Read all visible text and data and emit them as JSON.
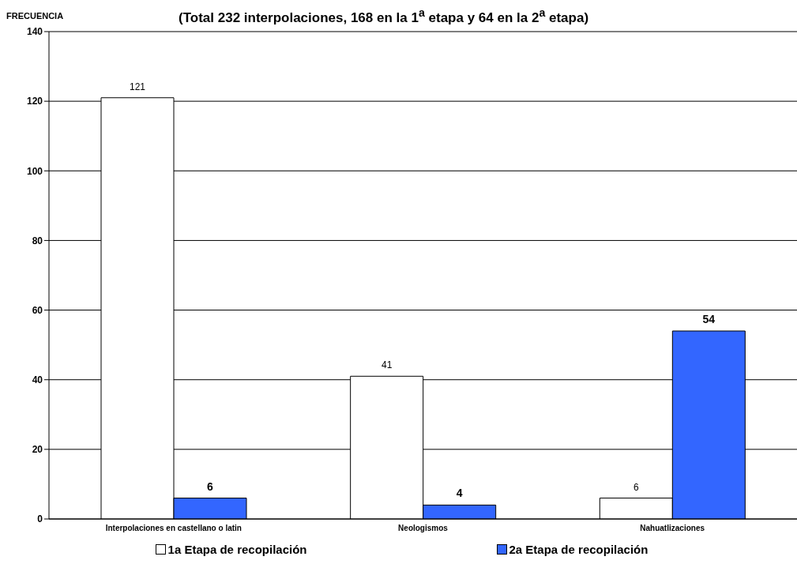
{
  "chart_data": {
    "type": "bar",
    "title": "(Total 232 interpolaciones, 168 en la 1$^{a}$ etapa y 64 en la 2$^{a}$ etapa)",
    "ylabel": "FRECUENCIA",
    "categories": [
      "Interpolaciones en castellano o latin",
      "Neologismos",
      "Nahuatlizaciones"
    ],
    "series": [
      {
        "name": "1a Etapa de recopilación",
        "color": "#ffffff",
        "values": [
          121,
          41,
          6
        ]
      },
      {
        "name": "2a Etapa de recopilación",
        "color": "#3366ff",
        "values": [
          6,
          4,
          54
        ]
      }
    ],
    "ylim": [
      0,
      140
    ],
    "yticks": [
      0,
      20,
      40,
      60,
      80,
      100,
      120,
      140
    ],
    "grid": "y",
    "legend": "bottom",
    "data_labels": true
  }
}
